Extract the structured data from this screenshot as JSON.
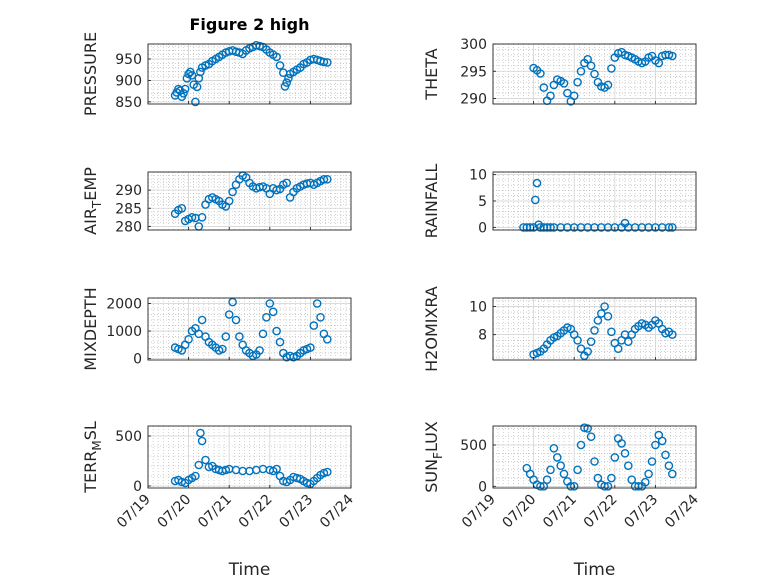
{
  "chart_data": [
    {
      "type": "scatter",
      "title": "Figure 2 high",
      "ylabel": "PRESSURE",
      "xlabel": "",
      "ylim": [
        845,
        985
      ],
      "yticks": [
        850,
        900,
        950
      ],
      "xlim": [
        "07/19",
        "07/24"
      ],
      "x": [
        "07/19 16:00",
        "07/19 17:00",
        "07/19 18:00",
        "07/19 19:00",
        "07/19 20:00",
        "07/19 21:00",
        "07/19 22:00",
        "07/19 23:00",
        "07/20 00:00",
        "07/20 01:00",
        "07/20 02:00",
        "07/20 03:00",
        "07/20 04:00",
        "07/20 05:00",
        "07/20 06:00",
        "07/20 07:00",
        "07/20 08:00",
        "07/20 10:00",
        "07/20 12:00",
        "07/20 14:00",
        "07/20 16:00",
        "07/20 18:00",
        "07/20 20:00",
        "07/20 22:00",
        "07/21 00:00",
        "07/21 02:00",
        "07/21 04:00",
        "07/21 06:00",
        "07/21 08:00",
        "07/21 10:00",
        "07/21 12:00",
        "07/21 14:00",
        "07/21 16:00",
        "07/21 18:00",
        "07/21 20:00",
        "07/21 22:00",
        "07/22 00:00",
        "07/22 02:00",
        "07/22 04:00",
        "07/22 06:00",
        "07/22 08:00",
        "07/22 09:00",
        "07/22 10:00",
        "07/22 11:00",
        "07/22 12:00",
        "07/22 14:00",
        "07/22 16:00",
        "07/22 18:00",
        "07/22 20:00",
        "07/22 22:00",
        "07/23 00:00",
        "07/23 02:00",
        "07/23 04:00",
        "07/23 06:00",
        "07/23 08:00",
        "07/23 10:00"
      ],
      "y": [
        865,
        872,
        880,
        876,
        862,
        870,
        880,
        905,
        915,
        920,
        912,
        890,
        850,
        885,
        905,
        920,
        930,
        935,
        938,
        945,
        950,
        955,
        960,
        965,
        968,
        970,
        967,
        965,
        962,
        970,
        975,
        978,
        982,
        980,
        978,
        972,
        965,
        960,
        955,
        935,
        918,
        886,
        895,
        905,
        915,
        920,
        925,
        930,
        938,
        942,
        948,
        950,
        948,
        945,
        943,
        942
      ]
    },
    {
      "type": "scatter",
      "title": "",
      "ylabel": "THETA",
      "xlabel": "",
      "ylim": [
        289,
        300
      ],
      "yticks": [
        290,
        295,
        300
      ],
      "xlim": [
        "07/19",
        "07/24"
      ],
      "x": [
        "07/20 00:00",
        "07/20 02:00",
        "07/20 04:00",
        "07/20 06:00",
        "07/20 08:00",
        "07/20 10:00",
        "07/20 12:00",
        "07/20 14:00",
        "07/20 16:00",
        "07/20 18:00",
        "07/20 20:00",
        "07/20 22:00",
        "07/21 00:00",
        "07/21 02:00",
        "07/21 04:00",
        "07/21 06:00",
        "07/21 08:00",
        "07/21 10:00",
        "07/21 12:00",
        "07/21 14:00",
        "07/21 16:00",
        "07/21 18:00",
        "07/21 20:00",
        "07/21 22:00",
        "07/22 00:00",
        "07/22 02:00",
        "07/22 04:00",
        "07/22 06:00",
        "07/22 08:00",
        "07/22 10:00",
        "07/22 12:00",
        "07/22 14:00",
        "07/22 16:00",
        "07/22 18:00",
        "07/22 20:00",
        "07/22 22:00",
        "07/23 00:00",
        "07/23 02:00",
        "07/23 04:00",
        "07/23 06:00",
        "07/23 08:00",
        "07/23 10:00"
      ],
      "y": [
        295.6,
        295.2,
        294.6,
        292.0,
        289.6,
        290.5,
        292.5,
        293.5,
        293.2,
        292.8,
        291.0,
        289.5,
        290.5,
        293.0,
        295.0,
        296.5,
        297.2,
        296.0,
        294.5,
        293.0,
        292.2,
        292.0,
        292.5,
        295.5,
        297.5,
        298.3,
        298.5,
        298.0,
        297.8,
        297.5,
        297.2,
        296.8,
        296.5,
        296.8,
        297.5,
        297.8,
        297.0,
        296.5,
        297.8,
        298.0,
        298.0,
        297.8
      ]
    },
    {
      "type": "scatter",
      "title": "",
      "ylabel": "AIR_TEMP",
      "xlabel": "",
      "ylim": [
        279,
        295
      ],
      "yticks": [
        280,
        285,
        290
      ],
      "xlim": [
        "07/19",
        "07/24"
      ],
      "x": [
        "07/19 16:00",
        "07/19 18:00",
        "07/19 20:00",
        "07/19 22:00",
        "07/20 00:00",
        "07/20 02:00",
        "07/20 04:00",
        "07/20 06:00",
        "07/20 08:00",
        "07/20 10:00",
        "07/20 12:00",
        "07/20 14:00",
        "07/20 16:00",
        "07/20 18:00",
        "07/20 20:00",
        "07/20 22:00",
        "07/21 00:00",
        "07/21 02:00",
        "07/21 04:00",
        "07/21 06:00",
        "07/21 08:00",
        "07/21 10:00",
        "07/21 12:00",
        "07/21 14:00",
        "07/21 16:00",
        "07/21 18:00",
        "07/21 20:00",
        "07/21 22:00",
        "07/22 00:00",
        "07/22 02:00",
        "07/22 04:00",
        "07/22 06:00",
        "07/22 08:00",
        "07/22 10:00",
        "07/22 12:00",
        "07/22 14:00",
        "07/22 16:00",
        "07/22 18:00",
        "07/22 20:00",
        "07/22 22:00",
        "07/23 00:00",
        "07/23 02:00",
        "07/23 04:00",
        "07/23 06:00",
        "07/23 08:00",
        "07/23 10:00"
      ],
      "y": [
        283.5,
        284.5,
        285.0,
        281.5,
        282.0,
        282.5,
        282.3,
        280.0,
        282.5,
        286.0,
        287.5,
        288.0,
        287.5,
        287.0,
        286.0,
        285.5,
        287.0,
        289.5,
        291.5,
        293.0,
        294.0,
        293.5,
        292.0,
        291.0,
        290.5,
        290.8,
        291.0,
        290.5,
        289.0,
        290.5,
        290.0,
        290.3,
        291.5,
        292.0,
        288.0,
        289.5,
        290.5,
        291.0,
        291.5,
        291.8,
        292.0,
        291.5,
        292.0,
        292.5,
        293.0,
        293.0
      ]
    },
    {
      "type": "scatter",
      "title": "",
      "ylabel": "RAINFALL",
      "xlabel": "",
      "ylim": [
        -0.5,
        10.5
      ],
      "yticks": [
        0,
        5,
        10
      ],
      "xlim": [
        "07/19",
        "07/24"
      ],
      "x": [
        "07/19 18:00",
        "07/19 20:00",
        "07/19 22:00",
        "07/20 00:00",
        "07/20 01:00",
        "07/20 02:00",
        "07/20 03:00",
        "07/20 04:00",
        "07/20 06:00",
        "07/20 08:00",
        "07/20 10:00",
        "07/20 12:00",
        "07/20 16:00",
        "07/20 20:00",
        "07/21 00:00",
        "07/21 04:00",
        "07/21 08:00",
        "07/21 12:00",
        "07/21 16:00",
        "07/21 20:00",
        "07/22 00:00",
        "07/22 04:00",
        "07/22 06:00",
        "07/22 08:00",
        "07/22 12:00",
        "07/22 16:00",
        "07/22 20:00",
        "07/23 00:00",
        "07/23 04:00",
        "07/23 08:00",
        "07/23 10:00"
      ],
      "y": [
        0,
        0,
        0,
        0,
        5.2,
        8.4,
        0.5,
        0,
        0,
        0,
        0,
        0,
        0,
        0,
        0,
        0,
        0,
        0,
        0,
        0,
        0,
        0,
        0.8,
        0,
        0,
        0,
        0,
        0,
        0,
        0,
        0
      ]
    },
    {
      "type": "scatter",
      "title": "",
      "ylabel": "MIXDEPTH",
      "xlabel": "",
      "ylim": [
        -50,
        2200
      ],
      "yticks": [
        0,
        1000,
        2000
      ],
      "xlim": [
        "07/19",
        "07/24"
      ],
      "x": [
        "07/19 16:00",
        "07/19 18:00",
        "07/19 20:00",
        "07/19 22:00",
        "07/20 00:00",
        "07/20 02:00",
        "07/20 04:00",
        "07/20 06:00",
        "07/20 08:00",
        "07/20 10:00",
        "07/20 12:00",
        "07/20 14:00",
        "07/20 16:00",
        "07/20 18:00",
        "07/20 20:00",
        "07/20 22:00",
        "07/21 00:00",
        "07/21 02:00",
        "07/21 04:00",
        "07/21 06:00",
        "07/21 08:00",
        "07/21 10:00",
        "07/21 12:00",
        "07/21 14:00",
        "07/21 16:00",
        "07/21 18:00",
        "07/21 20:00",
        "07/21 22:00",
        "07/22 00:00",
        "07/22 02:00",
        "07/22 04:00",
        "07/22 06:00",
        "07/22 08:00",
        "07/22 10:00",
        "07/22 12:00",
        "07/22 14:00",
        "07/22 16:00",
        "07/22 18:00",
        "07/22 20:00",
        "07/22 22:00",
        "07/23 00:00",
        "07/23 02:00",
        "07/23 04:00",
        "07/23 06:00",
        "07/23 08:00",
        "07/23 10:00"
      ],
      "y": [
        400,
        350,
        300,
        500,
        700,
        1000,
        1100,
        900,
        1400,
        800,
        600,
        500,
        400,
        300,
        350,
        800,
        1600,
        2050,
        1400,
        800,
        500,
        300,
        200,
        100,
        150,
        300,
        900,
        1500,
        2000,
        1700,
        1000,
        600,
        200,
        50,
        100,
        50,
        100,
        200,
        300,
        350,
        400,
        1200,
        2000,
        1500,
        900,
        700
      ]
    },
    {
      "type": "scatter",
      "title": "",
      "ylabel": "H2OMIXRA",
      "xlabel": "",
      "ylim": [
        6.2,
        10.6
      ],
      "yticks": [
        8,
        10
      ],
      "xlim": [
        "07/19",
        "07/24"
      ],
      "x": [
        "07/20 00:00",
        "07/20 02:00",
        "07/20 04:00",
        "07/20 06:00",
        "07/20 08:00",
        "07/20 10:00",
        "07/20 12:00",
        "07/20 14:00",
        "07/20 16:00",
        "07/20 18:00",
        "07/20 20:00",
        "07/20 22:00",
        "07/21 00:00",
        "07/21 02:00",
        "07/21 04:00",
        "07/21 06:00",
        "07/21 08:00",
        "07/21 10:00",
        "07/21 12:00",
        "07/21 14:00",
        "07/21 16:00",
        "07/21 18:00",
        "07/21 20:00",
        "07/21 22:00",
        "07/22 00:00",
        "07/22 02:00",
        "07/22 04:00",
        "07/22 06:00",
        "07/22 08:00",
        "07/22 10:00",
        "07/22 12:00",
        "07/22 14:00",
        "07/22 16:00",
        "07/22 18:00",
        "07/22 20:00",
        "07/22 22:00",
        "07/23 00:00",
        "07/23 02:00",
        "07/23 04:00",
        "07/23 06:00",
        "07/23 08:00",
        "07/23 10:00"
      ],
      "y": [
        6.6,
        6.7,
        6.8,
        7.0,
        7.3,
        7.6,
        7.8,
        7.9,
        8.1,
        8.3,
        8.5,
        8.4,
        8.0,
        7.6,
        7.0,
        6.5,
        6.8,
        7.5,
        8.3,
        9.0,
        9.5,
        10.0,
        9.3,
        8.2,
        7.4,
        7.0,
        7.6,
        8.0,
        7.5,
        8.0,
        8.4,
        8.6,
        8.8,
        8.7,
        8.5,
        8.7,
        9.0,
        8.8,
        8.4,
        8.1,
        8.2,
        8.0
      ]
    },
    {
      "type": "scatter",
      "title": "",
      "ylabel": "TERR_MSL",
      "xlabel": "Time",
      "ylim": [
        -20,
        600
      ],
      "yticks": [
        0,
        500
      ],
      "xlim": [
        "07/19",
        "07/24"
      ],
      "xticks": [
        "07/19",
        "07/20",
        "07/21",
        "07/22",
        "07/23",
        "07/24"
      ],
      "x": [
        "07/19 16:00",
        "07/19 18:00",
        "07/19 20:00",
        "07/19 22:00",
        "07/20 00:00",
        "07/20 02:00",
        "07/20 04:00",
        "07/20 06:00",
        "07/20 07:00",
        "07/20 08:00",
        "07/20 10:00",
        "07/20 12:00",
        "07/20 14:00",
        "07/20 16:00",
        "07/20 18:00",
        "07/20 20:00",
        "07/20 22:00",
        "07/21 00:00",
        "07/21 04:00",
        "07/21 08:00",
        "07/21 12:00",
        "07/21 16:00",
        "07/21 20:00",
        "07/22 00:00",
        "07/22 02:00",
        "07/22 04:00",
        "07/22 06:00",
        "07/22 08:00",
        "07/22 10:00",
        "07/22 12:00",
        "07/22 14:00",
        "07/22 16:00",
        "07/22 18:00",
        "07/22 20:00",
        "07/22 22:00",
        "07/23 00:00",
        "07/23 02:00",
        "07/23 04:00",
        "07/23 06:00",
        "07/23 08:00",
        "07/23 10:00"
      ],
      "y": [
        50,
        60,
        40,
        30,
        60,
        80,
        100,
        210,
        530,
        450,
        260,
        190,
        200,
        170,
        160,
        150,
        160,
        170,
        160,
        150,
        150,
        160,
        170,
        160,
        150,
        170,
        100,
        50,
        40,
        60,
        90,
        80,
        70,
        50,
        30,
        20,
        50,
        80,
        110,
        130,
        140
      ]
    },
    {
      "type": "scatter",
      "title": "",
      "ylabel": "SUN_FLUX",
      "xlabel": "Time",
      "ylim": [
        -20,
        730
      ],
      "yticks": [
        0,
        500
      ],
      "xlim": [
        "07/19",
        "07/24"
      ],
      "xticks": [
        "07/19",
        "07/20",
        "07/21",
        "07/22",
        "07/23",
        "07/24"
      ],
      "x": [
        "07/19 20:00",
        "07/19 22:00",
        "07/20 00:00",
        "07/20 02:00",
        "07/20 04:00",
        "07/20 06:00",
        "07/20 08:00",
        "07/20 10:00",
        "07/20 12:00",
        "07/20 14:00",
        "07/20 16:00",
        "07/20 18:00",
        "07/20 20:00",
        "07/20 22:00",
        "07/21 00:00",
        "07/21 02:00",
        "07/21 04:00",
        "07/21 06:00",
        "07/21 08:00",
        "07/21 10:00",
        "07/21 12:00",
        "07/21 14:00",
        "07/21 16:00",
        "07/21 18:00",
        "07/21 20:00",
        "07/21 22:00",
        "07/22 00:00",
        "07/22 02:00",
        "07/22 04:00",
        "07/22 06:00",
        "07/22 08:00",
        "07/22 10:00",
        "07/22 12:00",
        "07/22 14:00",
        "07/22 16:00",
        "07/22 18:00",
        "07/22 20:00",
        "07/22 22:00",
        "07/23 00:00",
        "07/23 02:00",
        "07/23 04:00",
        "07/23 06:00",
        "07/23 08:00",
        "07/23 10:00"
      ],
      "y": [
        220,
        150,
        80,
        20,
        0,
        0,
        80,
        200,
        460,
        350,
        250,
        150,
        60,
        0,
        0,
        200,
        500,
        710,
        700,
        600,
        300,
        100,
        20,
        0,
        0,
        100,
        350,
        580,
        520,
        400,
        250,
        80,
        0,
        0,
        0,
        50,
        150,
        300,
        500,
        620,
        550,
        380,
        250,
        150
      ]
    }
  ]
}
